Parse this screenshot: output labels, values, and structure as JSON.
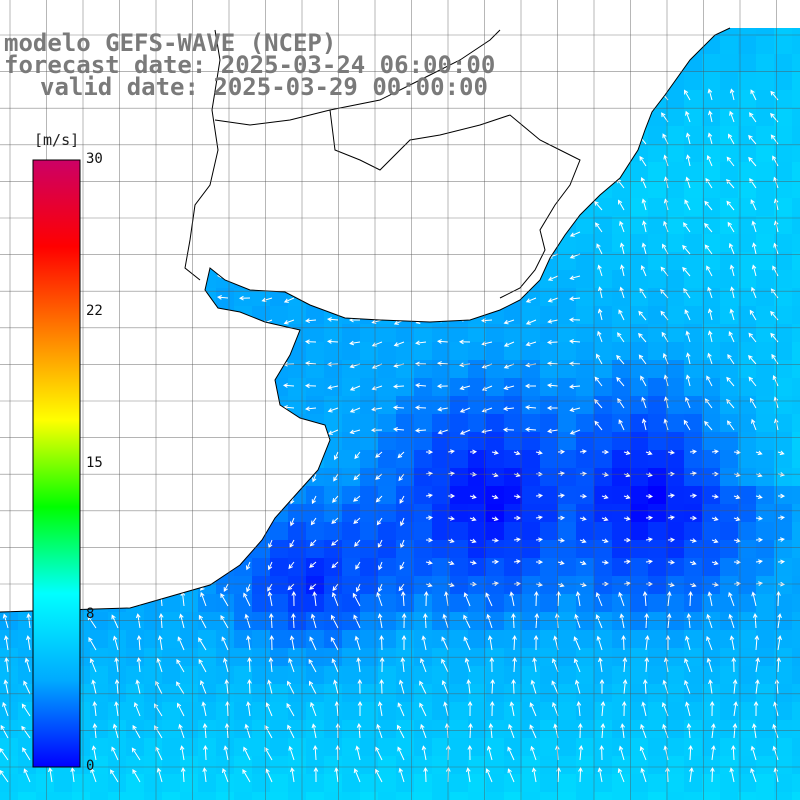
{
  "title": {
    "line1": "modelo GEFS-WAVE (NCEP)",
    "line2": "forecast date: 2025-03-24 06:00:00",
    "line3": "valid date: 2025-03-29 00:00:00"
  },
  "colorbar": {
    "unit": "[m/s]",
    "ticks": [
      {
        "label": "30",
        "value": 30
      },
      {
        "label": "22",
        "value": 22.5
      },
      {
        "label": "15",
        "value": 15
      },
      {
        "label": "8",
        "value": 7.5
      },
      {
        "label": "0",
        "value": 0
      }
    ],
    "range": [
      0,
      30
    ],
    "colors": [
      "#0000ff",
      "#00aaff",
      "#00ffff",
      "#00ff00",
      "#ffff00",
      "#ff8000",
      "#ff0000",
      "#cc0066"
    ]
  },
  "map": {
    "land_color": "#ffffff",
    "coast_color": "#000000",
    "grid_color": "#555555",
    "arrow_color": "#ffffff",
    "field": {
      "low_color": "#0000ff",
      "mid_color": "#00a0ff",
      "high_color": "#00e6ff"
    }
  }
}
